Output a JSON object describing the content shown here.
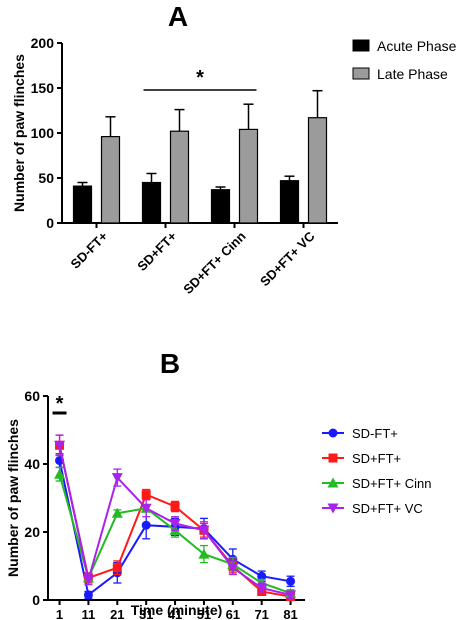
{
  "chart_data": [
    {
      "type": "bar",
      "panel_label": "A",
      "ylabel": "Number of paw flinches",
      "ylim": [
        0,
        200
      ],
      "yticks": [
        "0",
        "50",
        "100",
        "150",
        "200"
      ],
      "categories": [
        "SD-FT+",
        "SD+FT+",
        "SD+FT+ Cinn",
        "SD+FT+ VC"
      ],
      "series": [
        {
          "name": "Acute Phase",
          "color": "#000000",
          "values": [
            41,
            45,
            37,
            47
          ],
          "errors": [
            4,
            10,
            3,
            5
          ]
        },
        {
          "name": "Late Phase",
          "color": "#9b9b9b",
          "values": [
            96,
            102,
            104,
            117
          ],
          "errors": [
            22,
            24,
            28,
            30
          ]
        }
      ],
      "legend_position": "top-right",
      "significance": {
        "label": "*",
        "from_category": 1,
        "to_category": 2,
        "y": 150
      }
    },
    {
      "type": "line",
      "panel_label": "B",
      "xlabel": "Time (minute)",
      "ylabel": "Number of paw flinches",
      "xlim": [
        -3,
        86
      ],
      "ylim": [
        0,
        60
      ],
      "x": [
        1,
        11,
        21,
        31,
        41,
        51,
        61,
        71,
        81
      ],
      "xticks": [
        "1",
        "11",
        "21",
        "31",
        "41",
        "51",
        "61",
        "71",
        "81"
      ],
      "yticks": [
        "0",
        "20",
        "40",
        "60"
      ],
      "series": [
        {
          "name": "SD-FT+",
          "color": "#1a1aff",
          "marker": "circle",
          "values": [
            41,
            1.5,
            8,
            22,
            21.5,
            21,
            12,
            7,
            5.5
          ],
          "errors": [
            2,
            1,
            3,
            4,
            2.5,
            3,
            3,
            1.5,
            1.5
          ]
        },
        {
          "name": "SD+FT+",
          "color": "#ff1a1a",
          "marker": "square",
          "values": [
            45.5,
            6.5,
            9.5,
            31,
            27.5,
            20.5,
            10,
            2.5,
            1
          ],
          "errors": [
            3,
            1.5,
            2,
            1.5,
            1.5,
            2,
            2,
            1,
            1
          ]
        },
        {
          "name": "SD+FT+ Cinn",
          "color": "#22bb22",
          "marker": "triangle",
          "values": [
            37,
            6.5,
            25.5,
            27,
            20.5,
            13.5,
            10.5,
            5,
            2
          ],
          "errors": [
            2,
            1,
            1,
            1,
            2,
            2.5,
            2,
            1,
            1
          ]
        },
        {
          "name": "SD+FT+ VC",
          "color": "#aa22ee",
          "marker": "triangle-down",
          "values": [
            45.5,
            6,
            36,
            27,
            22.5,
            20.5,
            9.5,
            3.5,
            1.5
          ],
          "errors": [
            3,
            1.5,
            2.5,
            2.5,
            2,
            2.5,
            2,
            1.5,
            1
          ]
        }
      ],
      "legend_position": "right",
      "significance": {
        "label": "*",
        "x": 1,
        "y": 55
      }
    }
  ]
}
